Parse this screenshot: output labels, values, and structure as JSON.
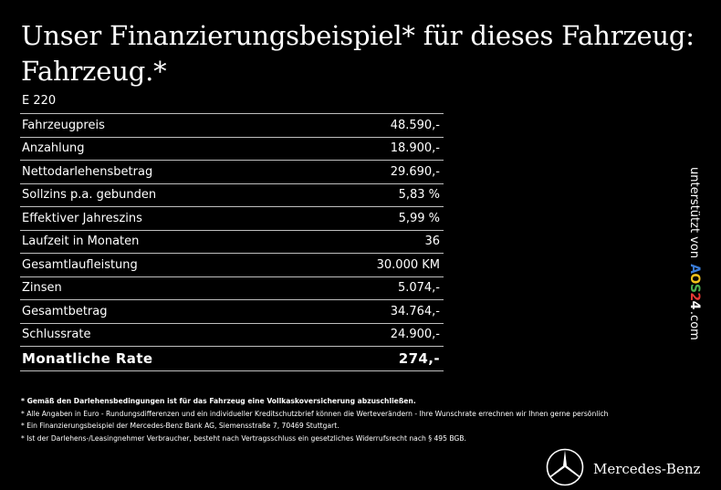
{
  "title": "Unser Finanzierungsbeispiel* für dieses Fahrzeug: Fahrzeug.*",
  "model": "E 220",
  "rows": [
    {
      "label": "Fahrzeugpreis",
      "value": "48.590,-"
    },
    {
      "label": "Anzahlung",
      "value": "18.900,-"
    },
    {
      "label": "Nettodarlehensbetrag",
      "value": "29.690,-"
    },
    {
      "label": "Sollzins p.a. gebunden",
      "value": "5,83 %"
    },
    {
      "label": "Effektiver Jahreszins",
      "value": "5,99 %"
    },
    {
      "label": "Laufzeit in Monaten",
      "value": "36"
    },
    {
      "label": "Gesamtlaufleistung",
      "value": "30.000 KM"
    },
    {
      "label": "Zinsen",
      "value": "5.074,-"
    },
    {
      "label": "Gesamtbetrag",
      "value": "34.764,-"
    },
    {
      "label": "Schlussrate",
      "value": "24.900,-"
    }
  ],
  "total": {
    "label": "Monatliche Rate",
    "value": "274,-"
  },
  "footnotes": [
    "* Gemäß den Darlehensbedingungen ist für das Fahrzeug eine Vollkaskoversicherung abzuschließen.",
    "* Alle Angaben in Euro - Rundungsdifferenzen und ein individueller Kreditschutzbrief können die Werteverändern - Ihre Wunschrate errechnen wir Ihnen gerne persönlich",
    "* Ein Finanzierungsbeispiel der Mercedes-Benz Bank AG, Siemensstraße 7, 70469 Stuttgart.",
    "* Ist der Darlehens-/Leasingnehmer Verbraucher, besteht nach Vertragsschluss ein gesetzliches Widerrufsrecht nach § 495 BGB."
  ],
  "side": {
    "prefix": "unterstützt von",
    "logo_text": "AOS24",
    "suffix": ".com",
    "logo_colors": [
      "#3a7bd5",
      "#f2c21b",
      "#4caf50",
      "#e53935",
      "#ffffff"
    ]
  },
  "brand": {
    "name": "Mercedes-Benz",
    "icon": "mercedes-star-icon"
  }
}
